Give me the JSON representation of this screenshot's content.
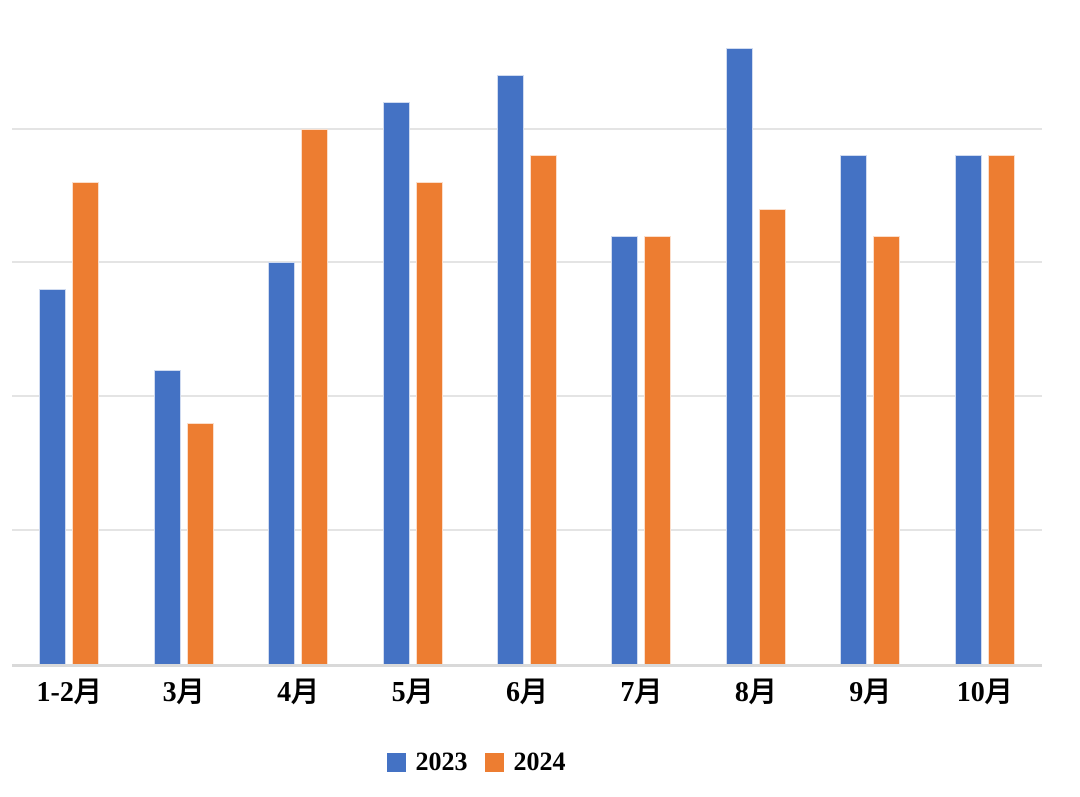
{
  "chart_data": {
    "type": "bar",
    "categories": [
      "1-2月",
      "3月",
      "4月",
      "5月",
      "6月",
      "7月",
      "8月",
      "9月",
      "10月"
    ],
    "series": [
      {
        "name": "2023",
        "color": "#4472C4",
        "values": [
          14,
          11,
          15,
          21,
          22,
          16,
          23,
          19,
          19
        ]
      },
      {
        "name": "2024",
        "color": "#ED7D31",
        "values": [
          18,
          9,
          20,
          18,
          19,
          16,
          17,
          16,
          19
        ]
      }
    ],
    "xlabel": "",
    "ylabel": "",
    "ylim": [
      0,
      25
    ],
    "grid_step": 5,
    "grid_on": true,
    "y_tick_labels_visible": false,
    "legend_position": "bottom-center"
  },
  "colors": {
    "series_2023": "#4472C4",
    "series_2024": "#ED7D31",
    "gridline": "#E4E4E4",
    "axis_line": "#D9D9D9",
    "label_text": "#000000",
    "background": "#FFFFFF"
  }
}
